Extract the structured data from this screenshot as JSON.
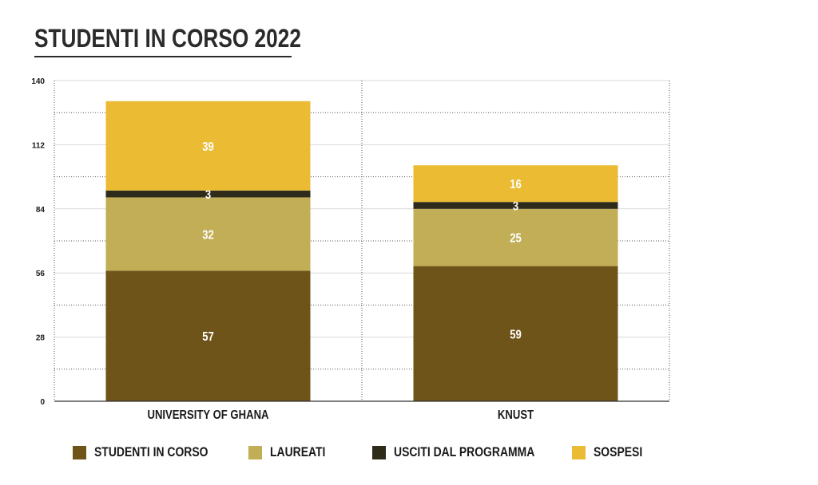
{
  "title": "STUDENTI IN CORSO 2022",
  "colors": {
    "studenti_in_corso": "#6e5418",
    "laureati": "#c1ae57",
    "usciti": "#2e2b1b",
    "sospesi": "#ebbb34",
    "grid": "#cccccc",
    "axis": "#333333"
  },
  "chart_data": {
    "type": "bar",
    "stacked": true,
    "title": "STUDENTI IN CORSO 2022",
    "categories": [
      "UNIVERSITY OF GHANA",
      "KNUST"
    ],
    "series": [
      {
        "name": "STUDENTI IN CORSO",
        "values": [
          57,
          59
        ],
        "color": "#6e5418"
      },
      {
        "name": "LAUREATI",
        "values": [
          32,
          25
        ],
        "color": "#c1ae57"
      },
      {
        "name": "USCITI DAL PROGRAMMA",
        "values": [
          3,
          3
        ],
        "color": "#2e2b1b"
      },
      {
        "name": "SOSPESI",
        "values": [
          39,
          16
        ],
        "color": "#ebbb34"
      }
    ],
    "ylim": [
      0,
      140
    ],
    "yticks": [
      0,
      28,
      56,
      84,
      112,
      140
    ],
    "grid": true,
    "legend_position": "bottom"
  },
  "legend": [
    {
      "label": "STUDENTI IN CORSO",
      "color": "#6e5418"
    },
    {
      "label": "LAUREATI",
      "color": "#c1ae57"
    },
    {
      "label": "USCITI DAL PROGRAMMA",
      "color": "#2e2b1b"
    },
    {
      "label": "SOSPESI",
      "color": "#ebbb34"
    }
  ]
}
